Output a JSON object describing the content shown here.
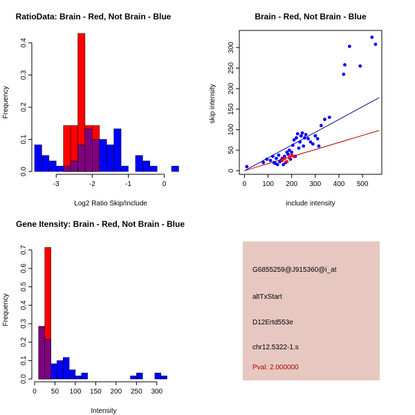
{
  "colors": {
    "brain": "#ff0000",
    "not_brain": "#0000ff",
    "overlap": "#7f007f",
    "panel_bg": "#e6c8c0",
    "pval": "#b00000"
  },
  "chart_data": [
    {
      "id": "ratio",
      "type": "histogram",
      "title": "RatioData: Brain - Red, Not Brain - Blue",
      "xlabel": "Log2 Ratio Skip/Include",
      "ylabel": "Frequency",
      "xlim": [
        -3.6,
        0.2
      ],
      "ylim": [
        0,
        0.43
      ],
      "xticks": [
        -3,
        -2,
        -1,
        0
      ],
      "yticks": [
        0.0,
        0.1,
        0.2,
        0.3,
        0.4
      ],
      "bin_start": -3.6,
      "bin_width": 0.2,
      "series": [
        {
          "name": "Not Brain",
          "color": "#0000ff",
          "values": [
            0.083,
            0.05,
            0.033,
            0.017,
            0.017,
            0.033,
            0.083,
            0.133,
            0.1,
            0.1,
            0.083,
            0.133,
            0.017,
            0,
            0.05,
            0.033,
            0.017,
            0,
            0,
            0.017
          ]
        },
        {
          "name": "Brain",
          "color": "#ff0000",
          "values": [
            0,
            0,
            0,
            0,
            0.143,
            0.143,
            0.429,
            0.143,
            0.143,
            0,
            0,
            0,
            0,
            0,
            0,
            0,
            0,
            0,
            0,
            0
          ]
        }
      ]
    },
    {
      "id": "scatter",
      "type": "scatter",
      "title": "Brain - Red, Not Brain - Blue",
      "xlabel": "include intensity",
      "ylabel": "skip intensity",
      "xlim": [
        -10,
        570
      ],
      "ylim": [
        -2,
        335
      ],
      "xticks": [
        0,
        100,
        200,
        300,
        400,
        500
      ],
      "yticks": [
        0,
        50,
        100,
        150,
        200,
        250,
        300
      ],
      "series": [
        {
          "name": "Not Brain",
          "color": "#0000ff",
          "points": [
            [
              10,
              10
            ],
            [
              80,
              20
            ],
            [
              95,
              28
            ],
            [
              110,
              25
            ],
            [
              120,
              35
            ],
            [
              125,
              20
            ],
            [
              130,
              18
            ],
            [
              135,
              30
            ],
            [
              140,
              15
            ],
            [
              145,
              38
            ],
            [
              150,
              22
            ],
            [
              155,
              25
            ],
            [
              160,
              30
            ],
            [
              165,
              15
            ],
            [
              170,
              35
            ],
            [
              175,
              20
            ],
            [
              180,
              45
            ],
            [
              185,
              40
            ],
            [
              190,
              50
            ],
            [
              195,
              28
            ],
            [
              200,
              45
            ],
            [
              205,
              62
            ],
            [
              210,
              75
            ],
            [
              215,
              35
            ],
            [
              220,
              80
            ],
            [
              225,
              90
            ],
            [
              230,
              55
            ],
            [
              235,
              70
            ],
            [
              240,
              85
            ],
            [
              245,
              92
            ],
            [
              250,
              60
            ],
            [
              255,
              80
            ],
            [
              260,
              88
            ],
            [
              270,
              78
            ],
            [
              280,
              70
            ],
            [
              290,
              65
            ],
            [
              300,
              85
            ],
            [
              310,
              78
            ],
            [
              315,
              60
            ],
            [
              325,
              110
            ],
            [
              340,
              125
            ],
            [
              360,
              130
            ],
            [
              420,
              235
            ],
            [
              425,
              258
            ],
            [
              445,
              303
            ],
            [
              490,
              255
            ],
            [
              540,
              325
            ],
            [
              555,
              308
            ]
          ]
        },
        {
          "name": "Brain",
          "color": "#ff0000",
          "points": [
            [
              160,
              25
            ],
            [
              170,
              30
            ],
            [
              180,
              22
            ],
            [
              190,
              32
            ],
            [
              200,
              38
            ],
            [
              210,
              35
            ]
          ]
        }
      ],
      "lines": [
        {
          "name": "Not Brain fit",
          "color": "#00008b",
          "intercept": 0,
          "slope": 0.312
        },
        {
          "name": "Brain fit",
          "color": "#b00000",
          "intercept": 0,
          "slope": 0.172
        }
      ]
    },
    {
      "id": "intensity",
      "type": "histogram",
      "title": "Gene Itensity: Brain - Red, Not Brain - Blue",
      "xlabel": "Intensity",
      "ylabel": "Frequency",
      "xlim": [
        0,
        336
      ],
      "ylim": [
        0,
        0.75
      ],
      "xticks": [
        0,
        50,
        100,
        150,
        200,
        250,
        300
      ],
      "yticks": [
        0.0,
        0.1,
        0.2,
        0.3,
        0.4,
        0.5,
        0.6,
        0.7
      ],
      "bin_start": 10,
      "bin_width": 15,
      "series": [
        {
          "name": "Not Brain",
          "color": "#0000ff",
          "values": [
            0.283,
            0.217,
            0.083,
            0.1,
            0.117,
            0.05,
            0.017,
            0.033,
            0,
            0,
            0,
            0,
            0,
            0,
            0,
            0.017,
            0.033,
            0,
            0,
            0.033,
            0.017
          ]
        },
        {
          "name": "Brain",
          "color": "#ff0000",
          "values": [
            0.286,
            0.714,
            0,
            0,
            0,
            0,
            0,
            0,
            0,
            0,
            0,
            0,
            0,
            0,
            0,
            0,
            0,
            0,
            0,
            0,
            0
          ]
        }
      ]
    }
  ],
  "info": {
    "probe_id": "G6855259@J915360@i_at",
    "event_type": "altTxStart",
    "gene": "D12Ertd553e",
    "location": "chr12.5322-1.s",
    "pval": "Pval: 2.000000"
  }
}
